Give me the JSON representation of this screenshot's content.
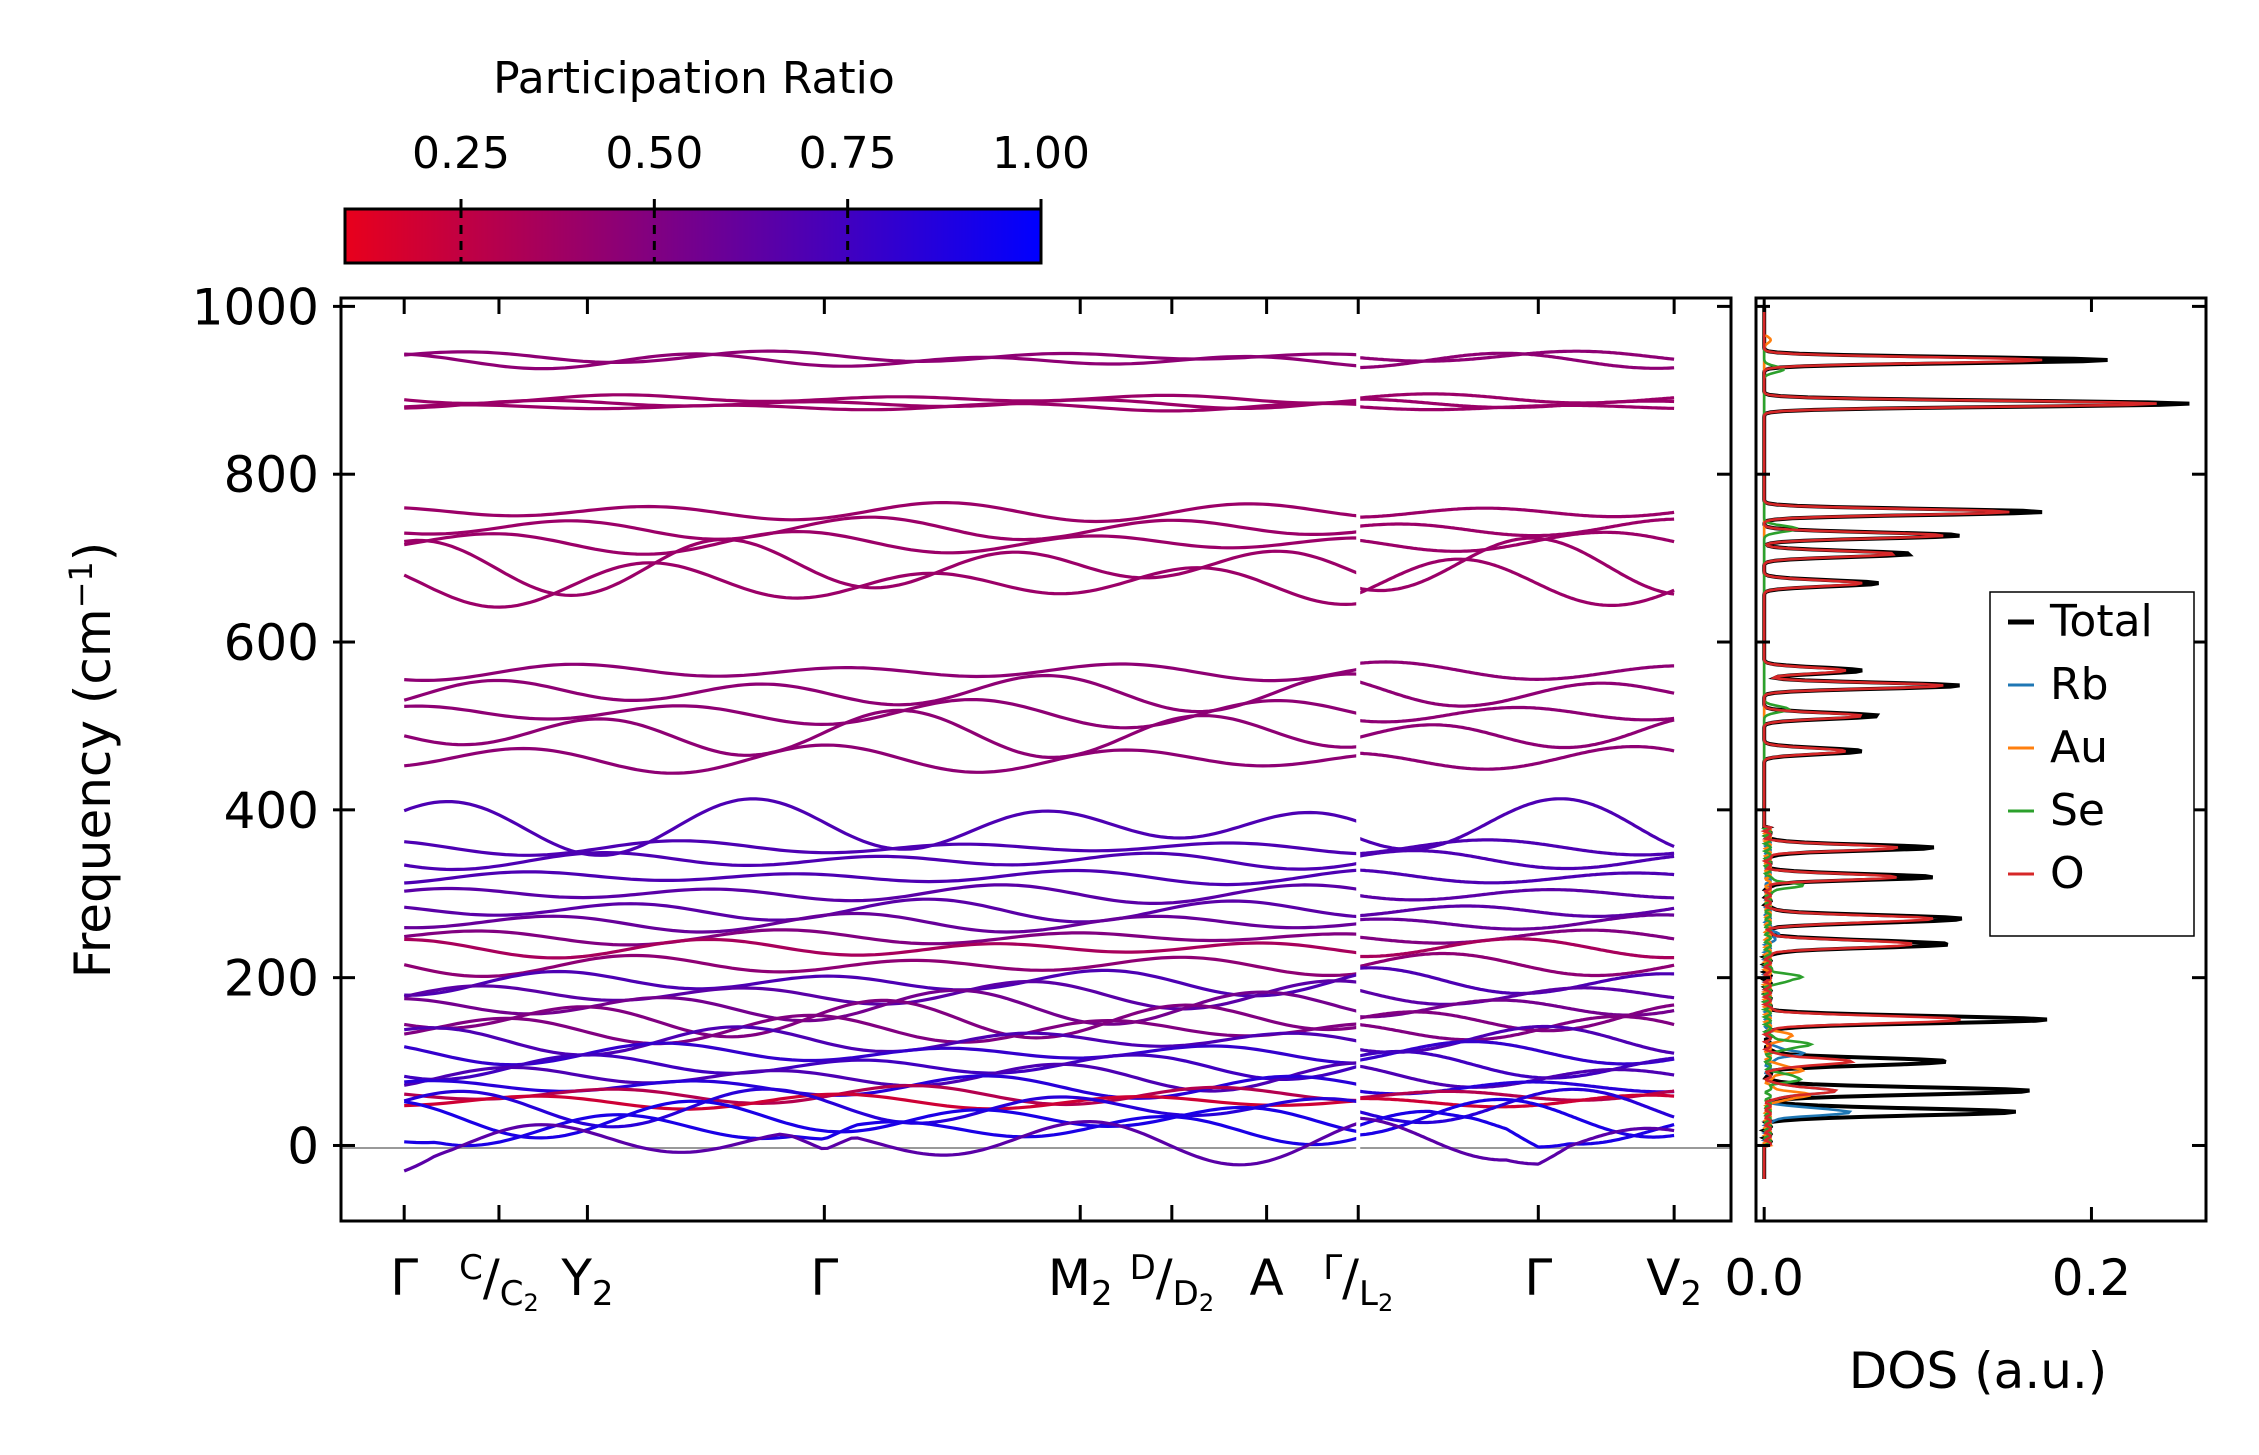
{
  "chart_data": [
    {
      "type": "line",
      "title": "",
      "ylabel": "Frequency (cm",
      "ylabel_sup": "−1",
      "ylabel_close": ")",
      "ylim": [
        -90,
        1010
      ],
      "yticks": [
        0,
        200,
        400,
        600,
        800,
        1000
      ],
      "xlim": [
        -0.2,
        4.2
      ],
      "zero_line": 0,
      "high_symmetry_points": [
        {
          "x": 0.0,
          "label": "Γ"
        },
        {
          "x": 0.3,
          "label": "C",
          "label2": "C",
          "sub2": "2"
        },
        {
          "x": 0.58,
          "label": "Y",
          "sub": "2"
        },
        {
          "x": 1.33,
          "label": "Γ"
        },
        {
          "x": 2.14,
          "label": "M",
          "sub": "2"
        },
        {
          "x": 2.43,
          "label": "D",
          "label2": "D",
          "sub2": "2"
        },
        {
          "x": 2.73,
          "label": "A"
        },
        {
          "x": 3.02,
          "label": "Γ",
          "label2": "L",
          "sub2": "2"
        },
        {
          "x": 3.59,
          "label": "Γ"
        },
        {
          "x": 4.02,
          "label": "V",
          "sub": "2"
        }
      ],
      "segments": [
        [
          0.0,
          3.02
        ],
        [
          3.02,
          4.02
        ]
      ],
      "colorbar": {
        "label": "Participation Ratio",
        "range": [
          0.1,
          1.0
        ],
        "ticks": [
          0.25,
          0.5,
          0.75,
          1.0
        ],
        "tick_labels": [
          "0.25",
          "0.50",
          "0.75",
          "1.00"
        ],
        "colors": [
          "#e8001c",
          "#0000ff"
        ]
      },
      "bands": [
        {
          "avg": 940,
          "amp": 6,
          "pr": 0.45
        },
        {
          "avg": 935,
          "amp": 8,
          "pr": 0.45
        },
        {
          "avg": 890,
          "amp": 5,
          "pr": 0.4
        },
        {
          "avg": 884,
          "amp": 5,
          "pr": 0.4
        },
        {
          "avg": 880,
          "amp": 4,
          "pr": 0.4
        },
        {
          "avg": 755,
          "amp": 10,
          "pr": 0.4
        },
        {
          "avg": 735,
          "amp": 12,
          "pr": 0.4
        },
        {
          "avg": 718,
          "amp": 12,
          "pr": 0.4
        },
        {
          "avg": 690,
          "amp": 30,
          "pr": 0.4
        },
        {
          "avg": 670,
          "amp": 25,
          "pr": 0.4
        },
        {
          "avg": 565,
          "amp": 10,
          "pr": 0.45
        },
        {
          "avg": 540,
          "amp": 20,
          "pr": 0.45
        },
        {
          "avg": 515,
          "amp": 15,
          "pr": 0.45
        },
        {
          "avg": 490,
          "amp": 25,
          "pr": 0.45
        },
        {
          "avg": 460,
          "amp": 15,
          "pr": 0.45
        },
        {
          "avg": 380,
          "amp": 30,
          "pr": 0.7
        },
        {
          "avg": 355,
          "amp": 8,
          "pr": 0.7
        },
        {
          "avg": 340,
          "amp": 10,
          "pr": 0.7
        },
        {
          "avg": 320,
          "amp": 8,
          "pr": 0.7
        },
        {
          "avg": 300,
          "amp": 10,
          "pr": 0.65
        },
        {
          "avg": 280,
          "amp": 12,
          "pr": 0.65
        },
        {
          "avg": 265,
          "amp": 10,
          "pr": 0.6
        },
        {
          "avg": 248,
          "amp": 8,
          "pr": 0.5
        },
        {
          "avg": 235,
          "amp": 10,
          "pr": 0.35
        },
        {
          "avg": 215,
          "amp": 12,
          "pr": 0.45
        },
        {
          "avg": 195,
          "amp": 15,
          "pr": 0.7
        },
        {
          "avg": 180,
          "amp": 15,
          "pr": 0.65
        },
        {
          "avg": 165,
          "amp": 18,
          "pr": 0.55
        },
        {
          "avg": 150,
          "amp": 20,
          "pr": 0.5
        },
        {
          "avg": 138,
          "amp": 15,
          "pr": 0.5
        },
        {
          "avg": 125,
          "amp": 15,
          "pr": 0.7
        },
        {
          "avg": 110,
          "amp": 12,
          "pr": 0.8
        },
        {
          "avg": 95,
          "amp": 15,
          "pr": 0.75
        },
        {
          "avg": 82,
          "amp": 15,
          "pr": 0.7
        },
        {
          "avg": 70,
          "amp": 12,
          "pr": 0.85
        },
        {
          "avg": 60,
          "amp": 10,
          "pr": 0.3
        },
        {
          "avg": 52,
          "amp": 8,
          "pr": 0.2
        },
        {
          "avg": 45,
          "amp": 20,
          "pr": 0.85
        },
        {
          "avg": 32,
          "amp": 20,
          "pr": 0.9
        },
        {
          "avg": 20,
          "amp": 18,
          "pr": 0.9
        },
        {
          "avg": 5,
          "amp": 25,
          "pr": 0.65
        }
      ]
    },
    {
      "type": "line",
      "xlabel": "DOS (a.u.)",
      "xlim": [
        -0.005,
        0.27
      ],
      "xticks": [
        0.0,
        0.2
      ],
      "xtick_labels": [
        "0.0",
        "0.2"
      ],
      "ylim": [
        -90,
        1010
      ],
      "legend_position": "center-right",
      "series": [
        {
          "name": "Total",
          "color": "#000000",
          "peaks": [
            [
              936,
              0.21
            ],
            [
              884,
              0.26
            ],
            [
              755,
              0.17
            ],
            [
              727,
              0.12
            ],
            [
              705,
              0.09
            ],
            [
              670,
              0.07
            ],
            [
              566,
              0.06
            ],
            [
              548,
              0.12
            ],
            [
              512,
              0.07
            ],
            [
              470,
              0.06
            ],
            [
              355,
              0.1
            ],
            [
              320,
              0.1
            ],
            [
              270,
              0.12
            ],
            [
              240,
              0.11
            ],
            [
              150,
              0.17
            ],
            [
              100,
              0.11
            ],
            [
              65,
              0.16
            ],
            [
              40,
              0.15
            ]
          ]
        },
        {
          "name": "Rb",
          "color": "#1f77b4",
          "peaks": [
            [
              65,
              0.04
            ],
            [
              40,
              0.05
            ],
            [
              110,
              0.02
            ],
            [
              250,
              0.006
            ]
          ]
        },
        {
          "name": "Au",
          "color": "#ff7f0e",
          "peaks": [
            [
              90,
              0.02
            ],
            [
              60,
              0.025
            ],
            [
              130,
              0.015
            ],
            [
              960,
              0.004
            ]
          ]
        },
        {
          "name": "Se",
          "color": "#2ca02c",
          "peaks": [
            [
              925,
              0.012
            ],
            [
              735,
              0.02
            ],
            [
              520,
              0.015
            ],
            [
              310,
              0.02
            ],
            [
              200,
              0.02
            ],
            [
              120,
              0.025
            ],
            [
              80,
              0.02
            ]
          ]
        },
        {
          "name": "O",
          "color": "#d62728",
          "peaks": [
            [
              936,
              0.17
            ],
            [
              884,
              0.24
            ],
            [
              755,
              0.15
            ],
            [
              727,
              0.11
            ],
            [
              705,
              0.08
            ],
            [
              670,
              0.06
            ],
            [
              566,
              0.05
            ],
            [
              548,
              0.11
            ],
            [
              512,
              0.06
            ],
            [
              470,
              0.05
            ],
            [
              355,
              0.08
            ],
            [
              320,
              0.08
            ],
            [
              270,
              0.1
            ],
            [
              240,
              0.09
            ],
            [
              150,
              0.12
            ],
            [
              100,
              0.05
            ],
            [
              65,
              0.04
            ]
          ]
        }
      ]
    }
  ]
}
